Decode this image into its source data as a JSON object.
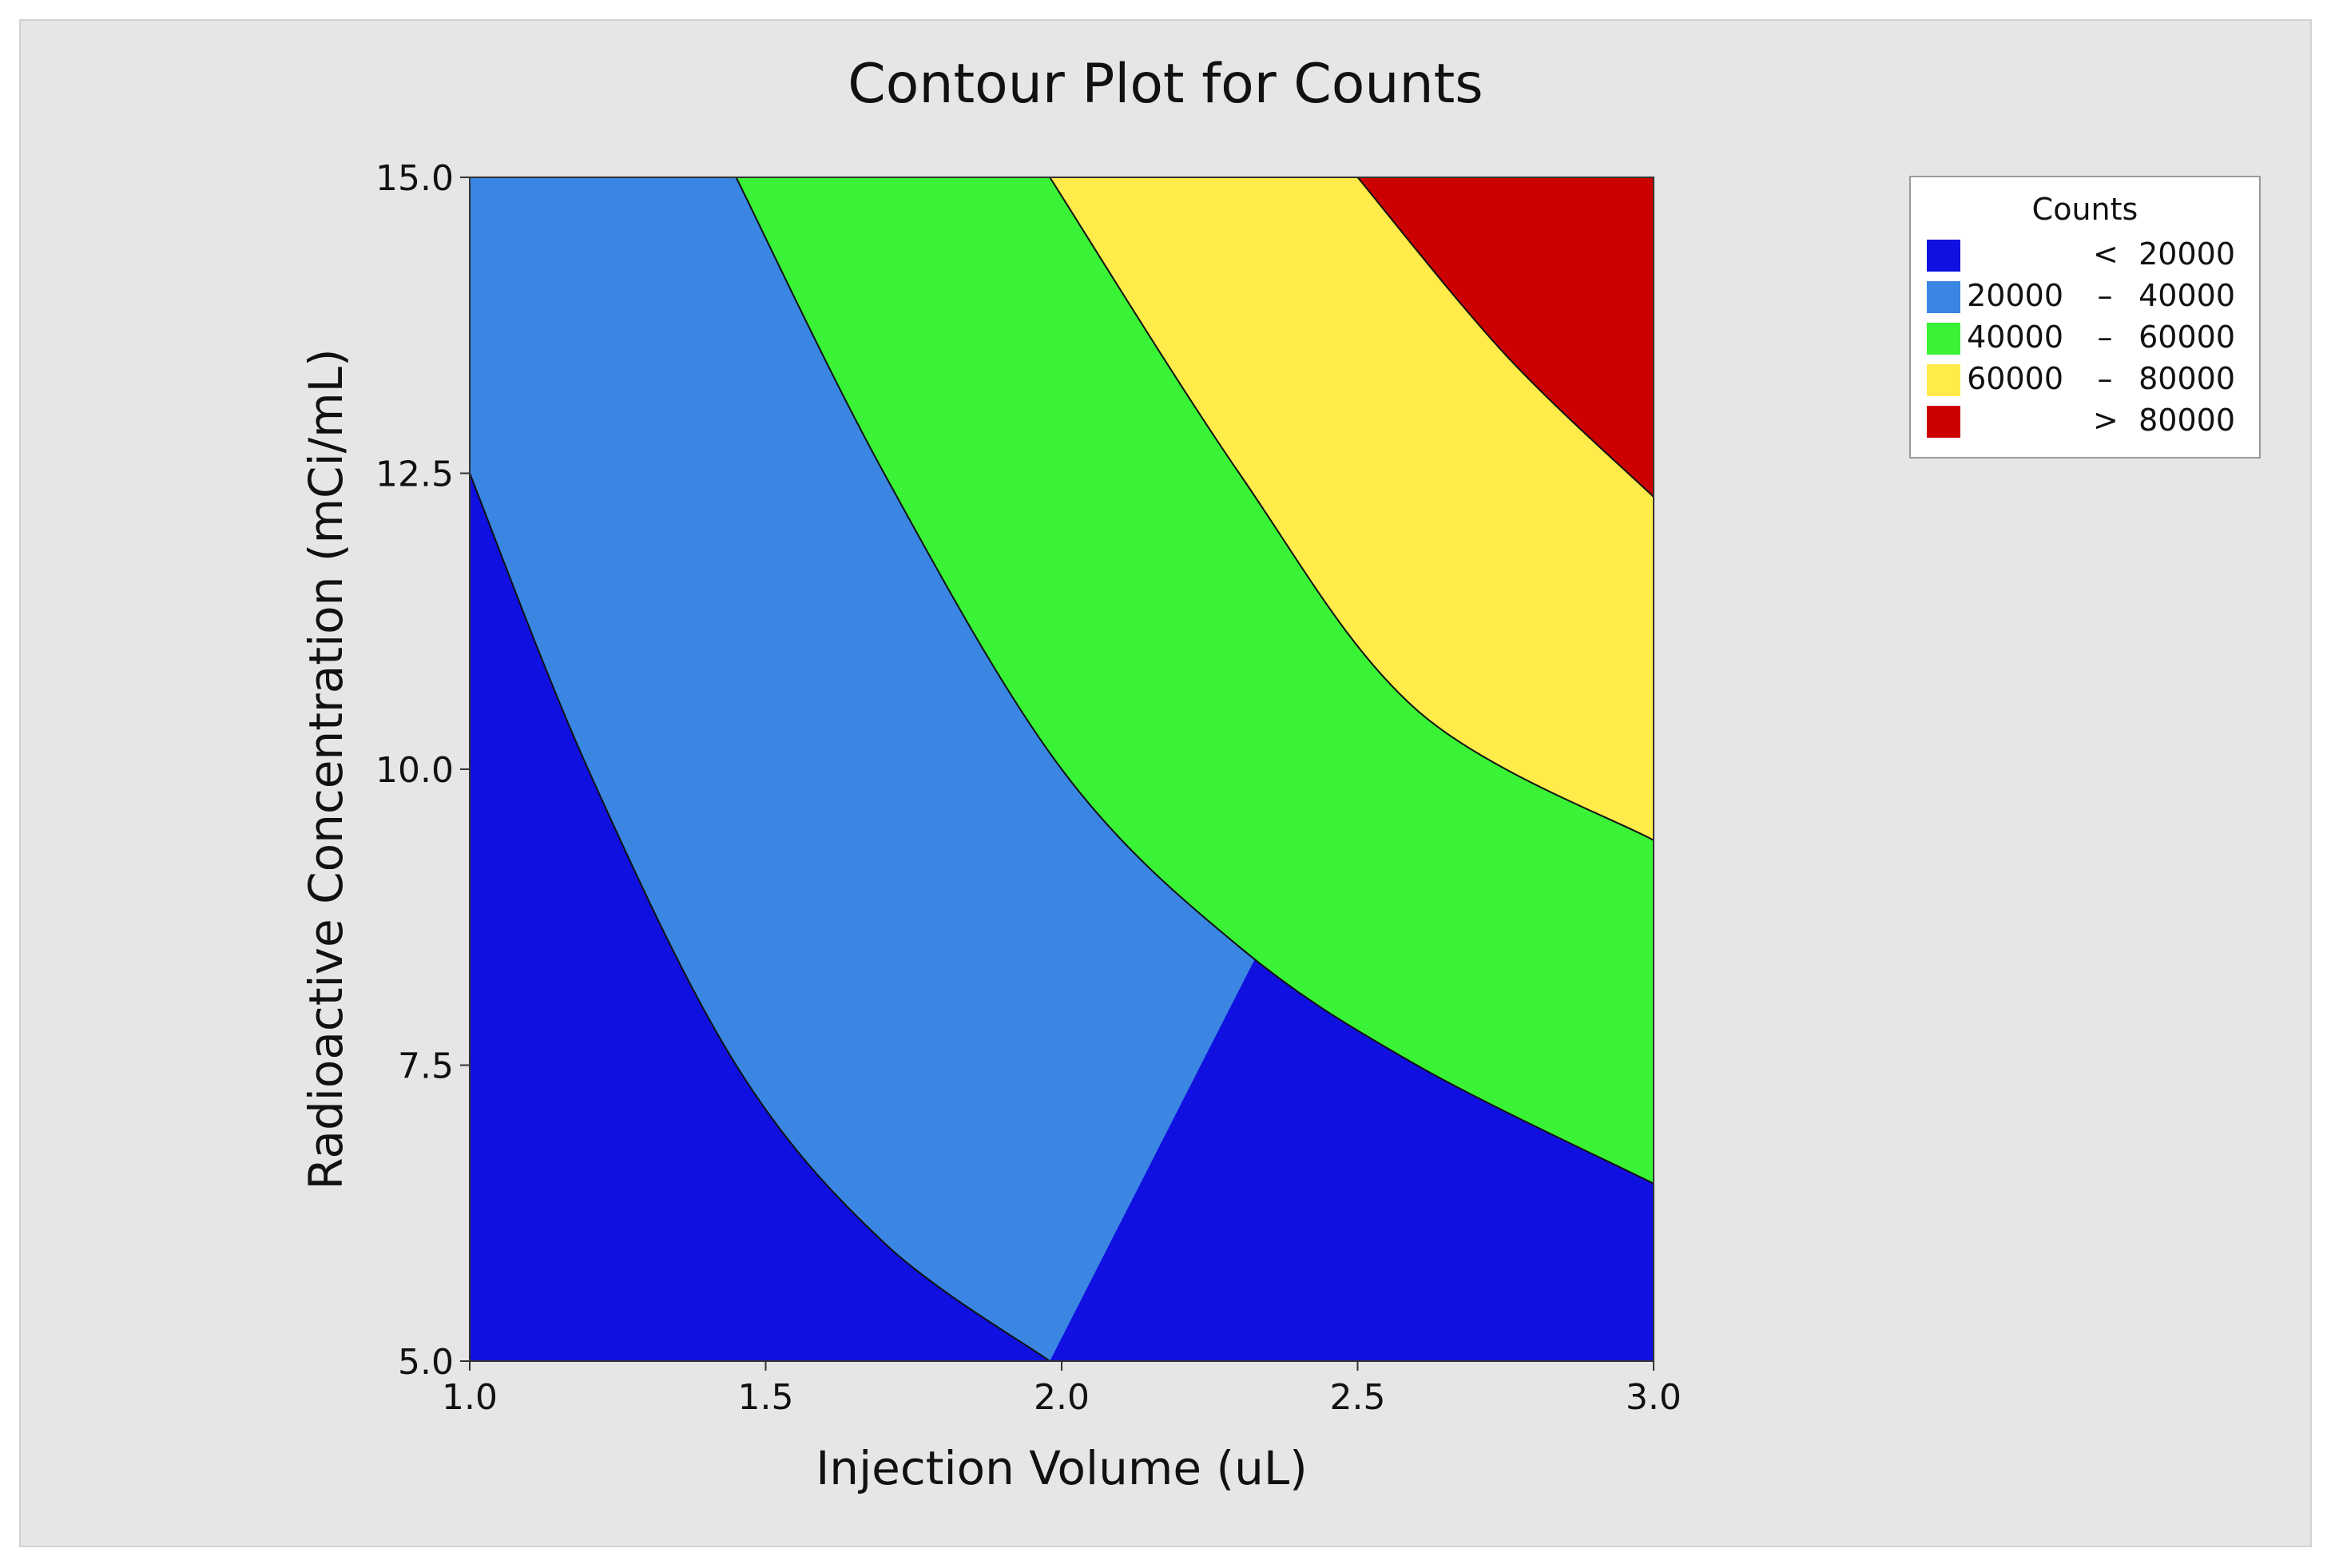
{
  "chart_data": {
    "type": "contour",
    "title": "Contour Plot for Counts",
    "xlabel": "Injection Volume (uL)",
    "ylabel": "Radioactive Concentration (mCi/mL)",
    "xlim": [
      1.0,
      3.0
    ],
    "ylim": [
      5.0,
      15.0
    ],
    "x_ticks": [
      "1.0",
      "1.5",
      "2.0",
      "2.5",
      "3.0"
    ],
    "y_ticks": [
      "5.0",
      "7.5",
      "10.0",
      "12.5",
      "15.0"
    ],
    "legend": {
      "title": "Counts",
      "placement": "right",
      "entries": [
        {
          "low": "",
          "op": "<",
          "high": "20000",
          "color": "#1010e0"
        },
        {
          "low": "20000",
          "op": "–",
          "high": "40000",
          "color": "#3a86e2"
        },
        {
          "low": "40000",
          "op": "–",
          "high": "60000",
          "color": "#3af236"
        },
        {
          "low": "60000",
          "op": "–",
          "high": "80000",
          "color": "#ffeb4a"
        },
        {
          "low": "",
          "op": ">",
          "high": "80000",
          "color": "#cc0000"
        }
      ]
    },
    "contours": [
      {
        "level": 20000,
        "points": [
          [
            1.0,
            12.5
          ],
          [
            1.2,
            10.0
          ],
          [
            1.45,
            7.5
          ],
          [
            1.7,
            6.0
          ],
          [
            1.98,
            5.0
          ]
        ]
      },
      {
        "level": 40000,
        "points": [
          [
            1.45,
            15.0
          ],
          [
            1.7,
            12.5
          ],
          [
            2.0,
            10.0
          ],
          [
            2.3,
            8.5
          ],
          [
            2.6,
            7.5
          ],
          [
            3.0,
            6.5
          ]
        ]
      },
      {
        "level": 60000,
        "points": [
          [
            1.98,
            15.0
          ],
          [
            2.3,
            12.5
          ],
          [
            2.6,
            10.5
          ],
          [
            3.0,
            9.4
          ]
        ]
      },
      {
        "level": 80000,
        "points": [
          [
            2.5,
            15.0
          ],
          [
            2.75,
            13.5
          ],
          [
            3.0,
            12.3
          ]
        ]
      }
    ]
  }
}
